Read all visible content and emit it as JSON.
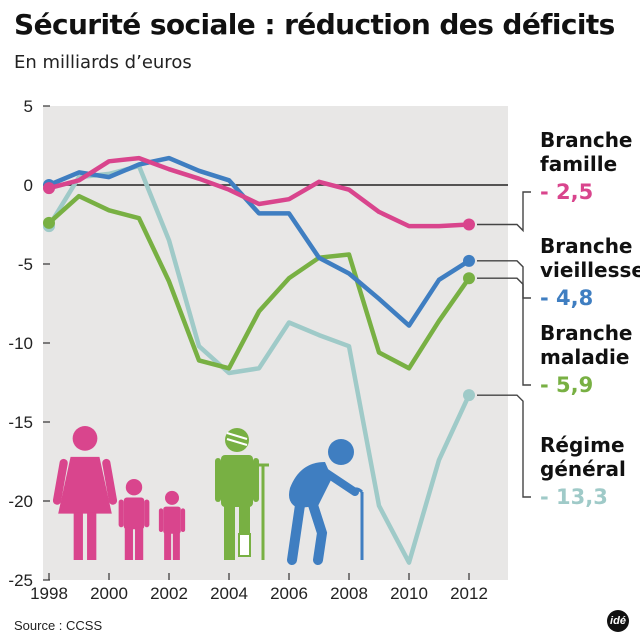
{
  "title": "Sécurité sociale : réduction des déficits",
  "subtitle": "En milliards d’euros",
  "source": "Source : CCSS",
  "logo_text": "idé",
  "colors": {
    "background_plot": "#e8e7e6",
    "famille": "#d9458d",
    "vieillesse": "#3f7ec1",
    "maladie": "#78b043",
    "general": "#9fcac8",
    "icons_family": "#d9458d",
    "icon_patient": "#78b043",
    "icon_elder": "#3f7ec1"
  },
  "icons": [
    "woman-icon",
    "child-icon",
    "child-icon",
    "patient-with-crutch-icon",
    "elderly-with-cane-icon"
  ],
  "chart_data": {
    "type": "line",
    "title": "Sécurité sociale : réduction des déficits",
    "subtitle": "En milliards d’euros",
    "xlabel": "",
    "ylabel": "",
    "x": [
      1998,
      1999,
      2000,
      2001,
      2002,
      2003,
      2004,
      2005,
      2006,
      2007,
      2008,
      2009,
      2010,
      2011,
      2012
    ],
    "xticks": [
      "1998",
      "2000",
      "2002",
      "2004",
      "2006",
      "2008",
      "2010",
      "2012"
    ],
    "xlim": [
      1997.8,
      2013.3
    ],
    "yticks": [
      "5",
      "0",
      "-5",
      "-10",
      "-15",
      "-20",
      "-25"
    ],
    "ylim": [
      -25,
      5
    ],
    "grid": false,
    "zero_line": true,
    "series": [
      {
        "key": "famille",
        "name": "Branche famille",
        "label_lines": [
          "Branche",
          "famille"
        ],
        "last_value_label": "- 2,5",
        "values": [
          -0.2,
          0.3,
          1.5,
          1.7,
          1.0,
          0.4,
          -0.3,
          -1.2,
          -0.9,
          0.2,
          -0.3,
          -1.7,
          -2.6,
          -2.6,
          -2.5
        ]
      },
      {
        "key": "vieillesse",
        "name": "Branche vieillesse",
        "label_lines": [
          "Branche",
          "vieillesse"
        ],
        "last_value_label": "- 4,8",
        "values": [
          0.0,
          0.8,
          0.5,
          1.3,
          1.7,
          0.9,
          0.3,
          -1.8,
          -1.8,
          -4.6,
          -5.6,
          -7.2,
          -8.9,
          -6.0,
          -4.8
        ]
      },
      {
        "key": "maladie",
        "name": "Branche maladie",
        "label_lines": [
          "Branche",
          "maladie"
        ],
        "last_value_label": "- 5,9",
        "values": [
          -2.4,
          -0.7,
          -1.6,
          -2.1,
          -6.1,
          -11.1,
          -11.6,
          -8.0,
          -5.9,
          -4.6,
          -4.4,
          -10.6,
          -11.6,
          -8.6,
          -5.9
        ]
      },
      {
        "key": "general",
        "name": "Régime général",
        "label_lines": [
          "Régime",
          "général"
        ],
        "last_value_label": "- 13,3",
        "values": [
          -2.6,
          0.5,
          0.7,
          1.2,
          -3.5,
          -10.2,
          -11.9,
          -11.6,
          -8.7,
          -9.5,
          -10.2,
          -20.3,
          -23.9,
          -17.4,
          -13.3
        ]
      }
    ]
  }
}
